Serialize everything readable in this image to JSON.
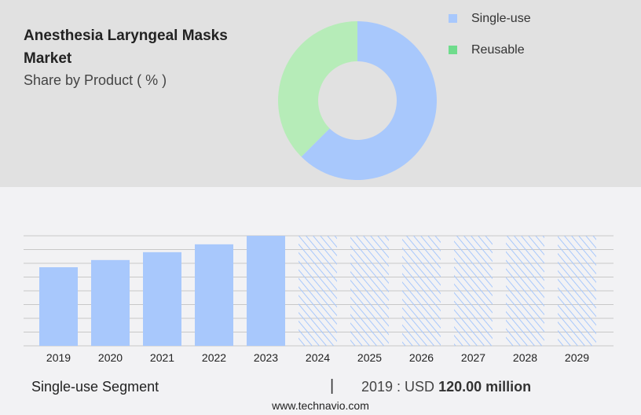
{
  "header": {
    "title": "Anesthesia Laryngeal Masks Market",
    "subtitle": "Share by Product ( % )"
  },
  "chart_data": [
    {
      "type": "pie",
      "donut": true,
      "series": [
        {
          "name": "Single-use",
          "value": 62.5,
          "color": "#a8c8fc"
        },
        {
          "name": "Reusable",
          "value": 37.5,
          "color": "#b6ecb8",
          "legend_color": "#6fdc8c"
        }
      ],
      "legend_placement": "right"
    },
    {
      "type": "bar",
      "categories": [
        "2019",
        "2020",
        "2021",
        "2022",
        "2023",
        "2024",
        "2025",
        "2026",
        "2027",
        "2028",
        "2029"
      ],
      "values": [
        120,
        131,
        143,
        155,
        168,
        null,
        null,
        null,
        null,
        null,
        null
      ],
      "forecast": [
        "2024",
        "2025",
        "2026",
        "2027",
        "2028",
        "2029"
      ],
      "ylim": [
        0,
        168
      ],
      "grid": true,
      "color": "#a8c8fc",
      "unit": "USD million"
    }
  ],
  "footer": {
    "segment": "Single-use Segment",
    "separator": "|",
    "year_label": "2019 : USD ",
    "value": "120.00 million",
    "site": "www.technavio.com"
  }
}
